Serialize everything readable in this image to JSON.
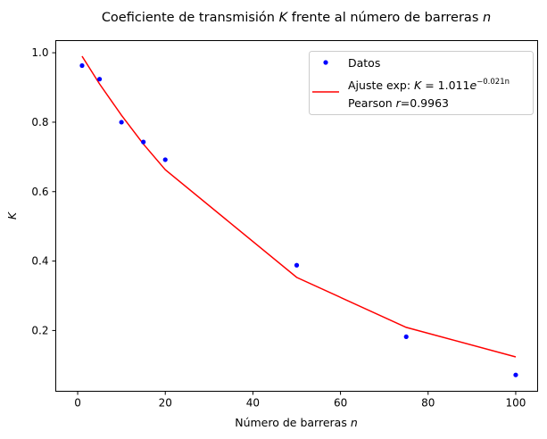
{
  "chart_data": {
    "type": "scatter",
    "title": {
      "prefix": "Coeficiente de transmisión ",
      "var1": "K",
      "middle": " frente al número de barreras ",
      "var2": "n"
    },
    "xlabel": {
      "prefix": "Número de barreras ",
      "var": "n"
    },
    "ylabel": {
      "var": "K"
    },
    "xlim": [
      -5,
      105
    ],
    "ylim": [
      0.025,
      1.035
    ],
    "xticks": [
      0,
      20,
      40,
      60,
      80,
      100
    ],
    "yticks": [
      0.2,
      0.4,
      0.6,
      0.8,
      1.0
    ],
    "xtick_labels": [
      "0",
      "20",
      "40",
      "60",
      "80",
      "100"
    ],
    "ytick_labels": [
      "0.2",
      "0.4",
      "0.6",
      "0.8",
      "1.0"
    ],
    "grid": false,
    "legend_position": "top-right",
    "series": [
      {
        "name": "Datos",
        "kind": "scatter",
        "color": "#0000ff",
        "x": [
          1,
          5,
          10,
          15,
          20,
          50,
          75,
          100
        ],
        "y": [
          0.963,
          0.924,
          0.8,
          0.743,
          0.692,
          0.388,
          0.182,
          0.072
        ]
      },
      {
        "kind": "line",
        "color": "#ff0000",
        "x": [
          1,
          5,
          10,
          15,
          20,
          50,
          75,
          100
        ],
        "y": [
          0.99,
          0.91,
          0.82,
          0.737,
          0.663,
          0.353,
          0.209,
          0.124
        ]
      }
    ],
    "legend": {
      "entries": [
        {
          "text": "Datos",
          "color": "#0000ff",
          "kind": "marker"
        },
        {
          "color": "#ff0000",
          "kind": "line",
          "line1": {
            "prefix": "Ajuste exp: ",
            "var": "K",
            "eq": " = 1.011",
            "base": "e",
            "sup": "−0.021n"
          },
          "line2": {
            "prefix": "Pearson ",
            "var": "r",
            "rest": "=0.9963"
          }
        }
      ]
    }
  }
}
